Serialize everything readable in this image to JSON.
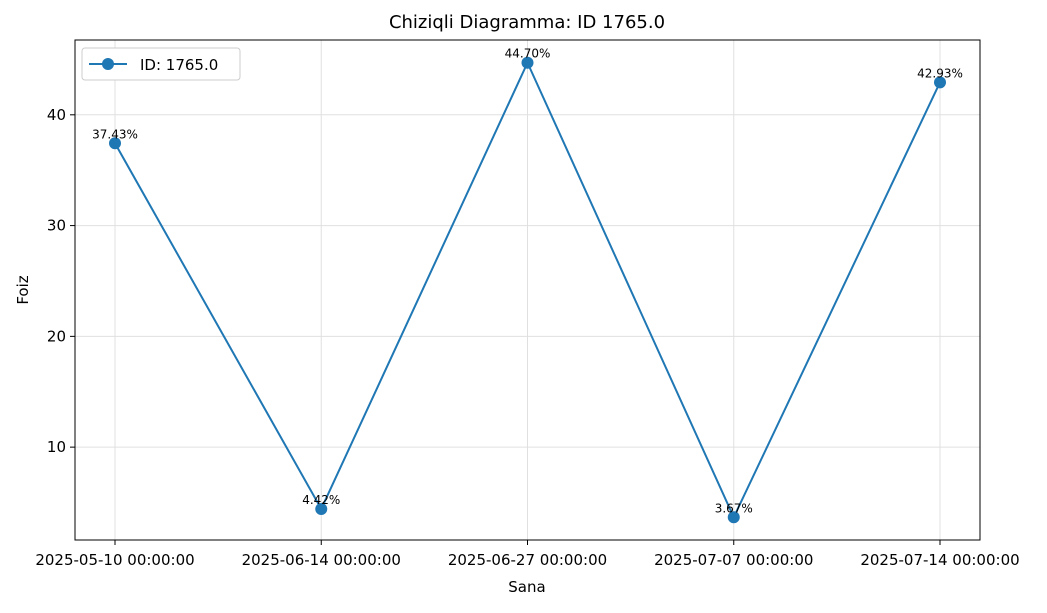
{
  "chart_data": {
    "type": "line",
    "title": "Chiziqli Diagramma: ID 1765.0",
    "xlabel": "Sana",
    "ylabel": "Foiz",
    "x": [
      "2025-05-10 00:00:00",
      "2025-06-14 00:00:00",
      "2025-06-27 00:00:00",
      "2025-07-07 00:00:00",
      "2025-07-14 00:00:00"
    ],
    "series": [
      {
        "name": "ID: 1765.0",
        "values": [
          37.43,
          4.42,
          44.7,
          3.67,
          42.93
        ],
        "labels": [
          "37.43%",
          "4.42%",
          "44.70%",
          "3.67%",
          "42.93%"
        ],
        "color": "#1f77b4",
        "marker": "circle"
      }
    ],
    "ylim": [
      1.617,
      46.753
    ],
    "yticks": [
      10,
      20,
      30,
      40
    ],
    "grid": true,
    "legend_position": "upper-left"
  }
}
